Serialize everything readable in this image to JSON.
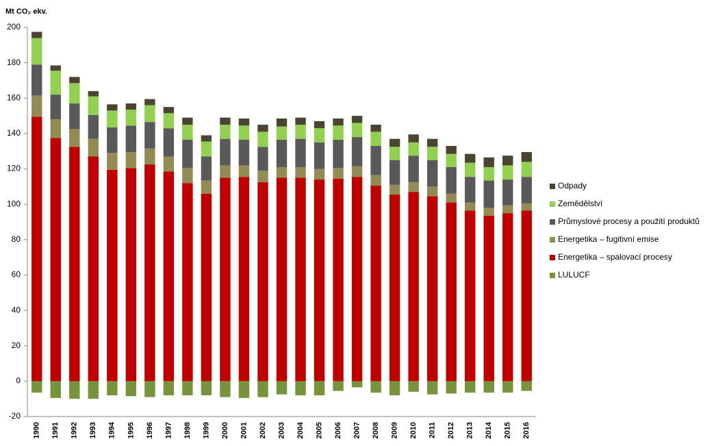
{
  "chart_data": {
    "type": "stacked-bar",
    "title": "Mt CO₂ ekv.",
    "categories": [
      "1990",
      "1991",
      "1992",
      "1993",
      "1994",
      "1995",
      "1996",
      "1997",
      "1998",
      "1999",
      "2000",
      "2001",
      "2002",
      "2003",
      "2004",
      "2005",
      "2006",
      "2007",
      "2008",
      "2009",
      "2010",
      "2011",
      "2012",
      "2013",
      "2014",
      "2015",
      "2016"
    ],
    "series": [
      {
        "name": "LULUCF",
        "color": "#77933c",
        "values": [
          -6.5,
          -9.5,
          -10,
          -10,
          -8,
          -8.5,
          -9,
          -8,
          -8,
          -8,
          -9,
          -9.5,
          -9,
          -7.5,
          -8,
          -8,
          -5.5,
          -3.5,
          -6.5,
          -8,
          -6,
          -7.5,
          -7,
          -6.5,
          -6.5,
          -6.5,
          -5.5
        ]
      },
      {
        "name": "Energetika – spalovací procesy",
        "color": "#c00000",
        "values": [
          149.5,
          137.5,
          132.5,
          127,
          119.5,
          120.5,
          122.5,
          118.5,
          112,
          106,
          115,
          115.5,
          112.5,
          115,
          115,
          114,
          114.5,
          115.5,
          110.5,
          105.5,
          107,
          104.5,
          101,
          96.5,
          93.5,
          95,
          96.5
        ]
      },
      {
        "name": "Energetika – fugitivní emise",
        "color": "#948a54",
        "values": [
          12,
          10.5,
          10,
          10,
          9.5,
          9,
          9,
          8.5,
          8.5,
          7.5,
          7,
          6.5,
          6.5,
          6,
          6,
          6,
          6,
          6,
          6,
          5.5,
          5.5,
          5.5,
          5,
          4.5,
          4.5,
          4.5,
          4
        ]
      },
      {
        "name": "Průmyslové procesy a použití produktů",
        "color": "#595959",
        "values": [
          17.5,
          14,
          14.5,
          13.5,
          14.5,
          15,
          15,
          16,
          16,
          13.5,
          15,
          14.5,
          13.5,
          15.5,
          16,
          15,
          16,
          16.5,
          16.5,
          14,
          15,
          15,
          15,
          14.5,
          15.5,
          14.5,
          15
        ]
      },
      {
        "name": "Zemědělství",
        "color": "#92d050",
        "values": [
          15,
          13.5,
          11.5,
          10.5,
          9.5,
          9,
          9.5,
          8.5,
          8.5,
          8.5,
          8,
          8,
          8.5,
          7.5,
          8,
          8,
          8,
          8,
          8,
          7.5,
          7.5,
          7.5,
          7.5,
          8,
          7.5,
          8,
          8.5
        ]
      },
      {
        "name": "Odpady",
        "color": "#4a4430",
        "values": [
          3.5,
          3,
          3.5,
          3,
          3.5,
          3.5,
          3.5,
          3.5,
          4,
          3.5,
          4,
          4,
          4,
          4.5,
          4,
          4,
          4,
          4,
          4,
          4.5,
          4.5,
          4.5,
          4.5,
          5,
          5.5,
          5.5,
          5.5
        ]
      }
    ],
    "ylim": [
      -20,
      200
    ],
    "yticks": [
      -20,
      0,
      20,
      40,
      60,
      80,
      100,
      120,
      140,
      160,
      180,
      200
    ],
    "grid": false,
    "legend": "right"
  }
}
